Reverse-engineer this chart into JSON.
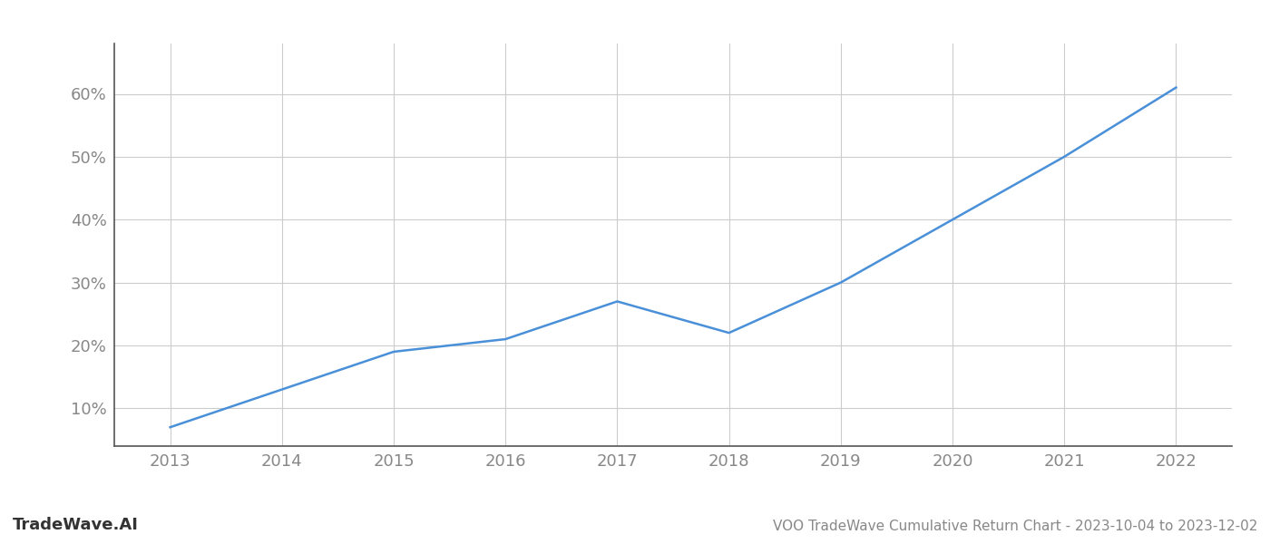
{
  "x_years": [
    2013,
    2014,
    2015,
    2016,
    2017,
    2018,
    2019,
    2020,
    2021,
    2022
  ],
  "y_values": [
    0.07,
    0.13,
    0.19,
    0.21,
    0.27,
    0.22,
    0.3,
    0.4,
    0.5,
    0.61
  ],
  "line_color": "#4a90d9",
  "background_color": "#ffffff",
  "grid_color": "#cccccc",
  "axis_color": "#555555",
  "tick_label_color": "#888888",
  "title": "VOO TradeWave Cumulative Return Chart - 2023-10-04 to 2023-12-02",
  "watermark": "TradeWave.AI",
  "ylim_min": 0.04,
  "ylim_max": 0.68,
  "title_fontsize": 11,
  "tick_fontsize": 13,
  "watermark_fontsize": 13,
  "line_width": 1.8,
  "yticks": [
    0.1,
    0.2,
    0.3,
    0.4,
    0.5,
    0.6
  ]
}
